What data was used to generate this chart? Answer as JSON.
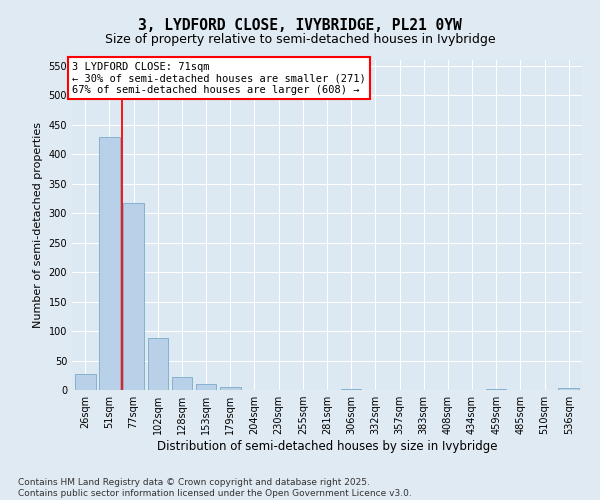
{
  "title": "3, LYDFORD CLOSE, IVYBRIDGE, PL21 0YW",
  "subtitle": "Size of property relative to semi-detached houses in Ivybridge",
  "xlabel": "Distribution of semi-detached houses by size in Ivybridge",
  "ylabel": "Number of semi-detached properties",
  "categories": [
    "26sqm",
    "51sqm",
    "77sqm",
    "102sqm",
    "128sqm",
    "153sqm",
    "179sqm",
    "204sqm",
    "230sqm",
    "255sqm",
    "281sqm",
    "306sqm",
    "332sqm",
    "357sqm",
    "383sqm",
    "408sqm",
    "434sqm",
    "459sqm",
    "485sqm",
    "510sqm",
    "536sqm"
  ],
  "values": [
    28,
    430,
    318,
    88,
    22,
    10,
    5,
    0,
    0,
    0,
    0,
    2,
    0,
    0,
    0,
    0,
    0,
    2,
    0,
    0,
    3
  ],
  "bar_color": "#b8d0e8",
  "bar_edge_color": "#7aaac8",
  "red_line_x": 1.5,
  "annotation_line1": "3 LYDFORD CLOSE: 71sqm",
  "annotation_line2": "← 30% of semi-detached houses are smaller (271)",
  "annotation_line3": "67% of semi-detached houses are larger (608) →",
  "ylim_max": 560,
  "yticks": [
    0,
    50,
    100,
    150,
    200,
    250,
    300,
    350,
    400,
    450,
    500,
    550
  ],
  "bg_color": "#e0eaf2",
  "plot_bg_color": "#dce8f2",
  "footer_line1": "Contains HM Land Registry data © Crown copyright and database right 2025.",
  "footer_line2": "Contains public sector information licensed under the Open Government Licence v3.0.",
  "title_fontsize": 10.5,
  "subtitle_fontsize": 9,
  "ylabel_fontsize": 8,
  "xlabel_fontsize": 8.5,
  "tick_fontsize": 7,
  "annotation_fontsize": 7.5,
  "footer_fontsize": 6.5
}
